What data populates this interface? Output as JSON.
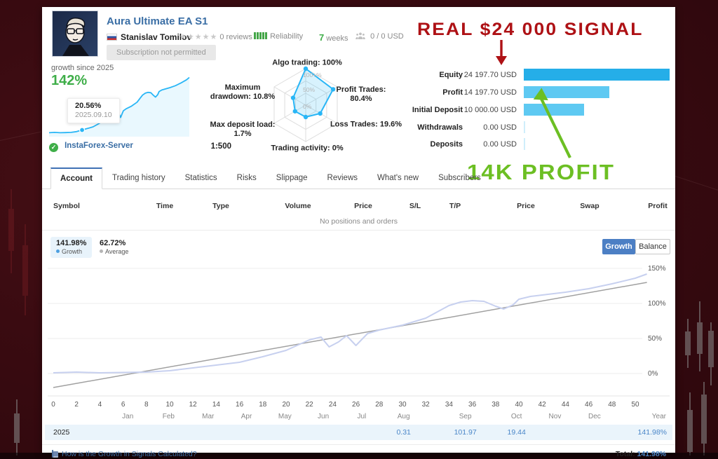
{
  "header": {
    "title": "Aura Ultimate EA S1",
    "author": "Stanislav Tomilov",
    "stars": "★★★★★",
    "reviews": "0 reviews",
    "reliability_label": "Reliability",
    "weeks_value": "7",
    "weeks_label": "weeks",
    "subscribers_value": "0 / 0 USD",
    "subscription_button": "Subscription not permitted"
  },
  "growth_panel": {
    "caption": "growth since 2025",
    "value": "142%",
    "tooltip_value": "20.56%",
    "tooltip_date": "2025.09.10",
    "server": "InstaForex-Server",
    "leverage": "1:500"
  },
  "annotations": {
    "red_text": "REAL $24 000 SIGNAL",
    "red_color": "#ae1115",
    "green_text": "14K PROFIT",
    "green_color": "#6cbf23"
  },
  "tabs": [
    "Account",
    "Trading history",
    "Statistics",
    "Risks",
    "Slippage",
    "Reviews",
    "What's new",
    "Subscribers"
  ],
  "positions_table": {
    "columns": [
      "Symbol",
      "Time",
      "Type",
      "Volume",
      "Price",
      "S/L",
      "T/P",
      "Price",
      "Swap",
      "Profit"
    ],
    "empty_message": "No positions and orders"
  },
  "growth_section": {
    "badges": [
      {
        "value": "141.98%",
        "label": "Growth",
        "dot_color": "#4c9fe0",
        "highlighted": true
      },
      {
        "value": "62.72%",
        "label": "Average",
        "dot_color": "#b5b5b5",
        "highlighted": false
      }
    ],
    "buttons": [
      {
        "label": "Growth",
        "active": true
      },
      {
        "label": "Balance",
        "active": false
      }
    ]
  },
  "footer": {
    "link": "How is the Growth in Signals Calculated?",
    "total_label": "Total:",
    "total_value": "141.98%"
  },
  "chart_data": [
    {
      "name": "account_summary_bars",
      "type": "bar",
      "categories": [
        "Equity",
        "Profit",
        "Initial Deposit",
        "Withdrawals",
        "Deposits"
      ],
      "value_labels": [
        "24 197.70 USD",
        "14 197.70 USD",
        "10 000.00 USD",
        "0.00 USD",
        "0.00 USD"
      ],
      "values": [
        24197.7,
        14197.7,
        10000.0,
        0.0,
        0.0
      ],
      "bar_colors": [
        "#25aee8",
        "#5ec9f2",
        "#5ec9f2",
        "#cfeefb",
        "#cfeefb"
      ],
      "xlim": [
        0,
        24197.7
      ]
    },
    {
      "name": "profile_radar",
      "type": "radar",
      "axes": [
        {
          "label": "Algo trading: 100%",
          "value": 100
        },
        {
          "label": "Profit Trades:\n80.4%",
          "value": 80.4
        },
        {
          "label": "Loss Trades: 19.6%",
          "value": 19.6
        },
        {
          "label": "Trading activity: 0%",
          "value": 0
        },
        {
          "label": "Max deposit load:\n1.7%",
          "value": 1.7
        },
        {
          "label": "Maximum\ndrawdown: 10.8%",
          "value": 10.8
        }
      ],
      "ring_labels": [
        "100+%",
        "50%",
        "0%"
      ],
      "line_color": "#29b6f6"
    },
    {
      "name": "mini_growth",
      "type": "area",
      "source": "weekly_growth",
      "note": "thumbnail of weekly growth, 0-142%",
      "marker": {
        "week": 12,
        "value_label": "20.56%",
        "date_label": "2025.09.10"
      },
      "line_color": "#29b6f6"
    },
    {
      "name": "weekly_growth",
      "type": "line",
      "title": "Growth",
      "xlabel_unit": "weeks",
      "x_ticks": [
        0,
        2,
        4,
        6,
        8,
        10,
        12,
        14,
        16,
        18,
        20,
        22,
        24,
        26,
        28,
        30,
        32,
        34,
        36,
        38,
        40,
        42,
        44,
        46,
        48,
        50
      ],
      "month_labels": [
        "Jan",
        "Feb",
        "Mar",
        "Apr",
        "May",
        "Jun",
        "Jul",
        "Aug",
        "Sep",
        "Oct",
        "Nov",
        "Dec"
      ],
      "month_week_positions": [
        6.4,
        9.9,
        13.3,
        16.6,
        19.9,
        23.2,
        26.5,
        30.1,
        35.4,
        39.8,
        43.1,
        46.5
      ],
      "year_label": "Year",
      "y_ticks": [
        {
          "v": 0,
          "label": "0%"
        },
        {
          "v": 50,
          "label": "50%"
        },
        {
          "v": 100,
          "label": "100%"
        },
        {
          "v": 150,
          "label": "150%"
        }
      ],
      "ylim": [
        -25,
        155
      ],
      "series": [
        {
          "name": "Growth",
          "color": "#c7d0ef",
          "width": 2,
          "points": [
            [
              0,
              1
            ],
            [
              2,
              2
            ],
            [
              4,
              1
            ],
            [
              6,
              1.5
            ],
            [
              8,
              2
            ],
            [
              10,
              4
            ],
            [
              12,
              8
            ],
            [
              14,
              12
            ],
            [
              16,
              16
            ],
            [
              18,
              24
            ],
            [
              20,
              33
            ],
            [
              22,
              48
            ],
            [
              23,
              52
            ],
            [
              23.7,
              38
            ],
            [
              24.5,
              45
            ],
            [
              25.2,
              54
            ],
            [
              26,
              40
            ],
            [
              27,
              57
            ],
            [
              28,
              62
            ],
            [
              30,
              69
            ],
            [
              32,
              79
            ],
            [
              33,
              88
            ],
            [
              34,
              97
            ],
            [
              35,
              102
            ],
            [
              36,
              104
            ],
            [
              37,
              103
            ],
            [
              38,
              96
            ],
            [
              38.7,
              92
            ],
            [
              39.5,
              98
            ],
            [
              40,
              106
            ],
            [
              41,
              110
            ],
            [
              42,
              112
            ],
            [
              44,
              116
            ],
            [
              46,
              121
            ],
            [
              48,
              128
            ],
            [
              50,
              136
            ],
            [
              51,
              142
            ]
          ]
        },
        {
          "name": "Average",
          "color": "#a0a0a0",
          "width": 1.5,
          "points": [
            [
              0,
              -20
            ],
            [
              51,
              130
            ]
          ]
        }
      ],
      "year_row": {
        "year": "2025",
        "monthly_values": {
          "Aug": "0.31",
          "Sep": "101.97",
          "Oct": "19.44"
        },
        "year_total": "141.98%"
      }
    }
  ]
}
